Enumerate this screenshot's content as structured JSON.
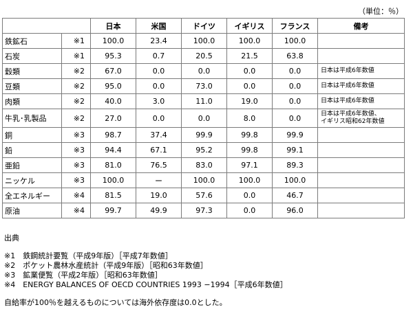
{
  "unit_label": "（単位：％）",
  "headers": [
    "",
    "日本",
    "米国",
    "ドイツ",
    "イギリス",
    "フランス",
    "備考"
  ],
  "rows": [
    {
      "item": "鉄鉱石",
      "ref": "※1",
      "values": [
        "100.0",
        "23.4",
        "100.0",
        "100.0",
        "100.0"
      ],
      "remark": ""
    },
    {
      "item": "石炭",
      "ref": "※1",
      "values": [
        "95.3",
        "0.7",
        "20.5",
        "21.5",
        "63.8"
      ],
      "remark": ""
    },
    {
      "item": "穀類",
      "ref": "※2",
      "values": [
        "67.0",
        "0.0",
        "0.0",
        "0.0",
        "0.0"
      ],
      "remark": "日本は平成6年数値"
    },
    {
      "item": "豆類",
      "ref": "※2",
      "values": [
        "95.0",
        "0.0",
        "73.0",
        "0.0",
        "0.0"
      ],
      "remark": "日本は平成6年数値"
    },
    {
      "item": "肉類",
      "ref": "※2",
      "values": [
        "40.0",
        "3.0",
        "11.0",
        "19.0",
        "0.0"
      ],
      "remark": "日本は平成6年数値"
    },
    {
      "item": "牛乳･乳製品",
      "ref": "※2",
      "values": [
        "27.0",
        "0.0",
        "0.0",
        "8.0",
        "0.0"
      ],
      "remark": "日本は平成6年数値、\nイギリス昭和62年数値"
    },
    {
      "item": "銅",
      "ref": "※3",
      "values": [
        "98.7",
        "37.4",
        "99.9",
        "99.8",
        "99.9"
      ],
      "remark": ""
    },
    {
      "item": "鉛",
      "ref": "※3",
      "values": [
        "94.4",
        "67.1",
        "95.2",
        "99.8",
        "99.1"
      ],
      "remark": ""
    },
    {
      "item": "亜鉛",
      "ref": "※3",
      "values": [
        "81.0",
        "76.5",
        "83.0",
        "97.1",
        "89.3"
      ],
      "remark": ""
    },
    {
      "item": "ニッケル",
      "ref": "※3",
      "values": [
        "100.0",
        "ー",
        "100.0",
        "100.0",
        "100.0"
      ],
      "remark": ""
    },
    {
      "item": "全エネルギー",
      "ref": "※4",
      "values": [
        "81.5",
        "19.0",
        "57.6",
        "0.0",
        "46.7"
      ],
      "remark": ""
    },
    {
      "item": "原油",
      "ref": "※4",
      "values": [
        "99.7",
        "49.9",
        "97.3",
        "0.0",
        "96.0"
      ],
      "remark": ""
    }
  ],
  "notes": {
    "heading": "出典",
    "sources": [
      "※1　鉄鋼統計要覧（平成9年版）［平成7年数値］",
      "※2　ポケット農林水産統計（平成9年版）［昭和63年数値］",
      "※3　鉱業便覧（平成2年版）［昭和63年数値］",
      "※4　ENERGY BALANCES OF OECD COUNTRIES 1993 −1994［平成6年数値］"
    ],
    "footer": "自給率が100％を越えるものについては海外依存度は0.0とした。"
  }
}
